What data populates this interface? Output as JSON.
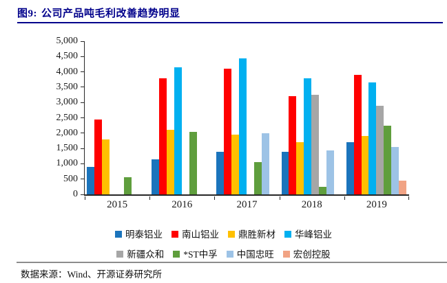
{
  "header": {
    "figure_label": "图9:",
    "title": "公司产品吨毛利改善趋势明显"
  },
  "footer": {
    "source": "数据来源：Wind、开源证券研究所"
  },
  "colors": {
    "title_navy": "#00008B",
    "footer_rule": "#8C8C8C",
    "axis": "#262626"
  },
  "chart_data": {
    "type": "bar",
    "title": "",
    "xlabel": "",
    "ylabel": "",
    "grid": false,
    "legend_position": "bottom",
    "ylim": [
      0,
      5000
    ],
    "yticks": [
      0,
      500,
      1000,
      1500,
      2000,
      2500,
      3000,
      3500,
      4000,
      4500,
      5000
    ],
    "ytick_labels": [
      "0",
      "500",
      "1,000",
      "1,500",
      "2,000",
      "2,500",
      "3,000",
      "3,500",
      "4,000",
      "4,500",
      "5,000"
    ],
    "categories": [
      "2015",
      "2016",
      "2017",
      "2018",
      "2019"
    ],
    "series": [
      {
        "name": "明泰铝业",
        "color": "#1B74BC",
        "values": [
          900,
          1150,
          1400,
          1400,
          1700
        ]
      },
      {
        "name": "南山铝业",
        "color": "#FF0000",
        "values": [
          2450,
          3800,
          4100,
          3200,
          3900
        ]
      },
      {
        "name": "鼎胜新材",
        "color": "#FFC000",
        "values": [
          1800,
          2100,
          1950,
          1700,
          1900
        ]
      },
      {
        "name": "华峰铝业",
        "color": "#00B0F0",
        "values": [
          null,
          4150,
          4450,
          3800,
          3650
        ]
      },
      {
        "name": "新疆众和",
        "color": "#A6A6A6",
        "values": [
          null,
          null,
          null,
          3250,
          2900
        ]
      },
      {
        "name": "*ST中孚",
        "color": "#5F9E3D",
        "values": [
          550,
          2050,
          1050,
          250,
          2250
        ]
      },
      {
        "name": "中国忠旺",
        "color": "#9DC3E6",
        "values": [
          null,
          null,
          2000,
          1430,
          1550
        ]
      },
      {
        "name": "宏创控股",
        "color": "#F1A384",
        "values": [
          null,
          null,
          null,
          null,
          450
        ]
      }
    ],
    "legend_rows": [
      [
        0,
        1,
        2,
        3
      ],
      [
        4,
        5,
        6,
        7
      ]
    ]
  }
}
